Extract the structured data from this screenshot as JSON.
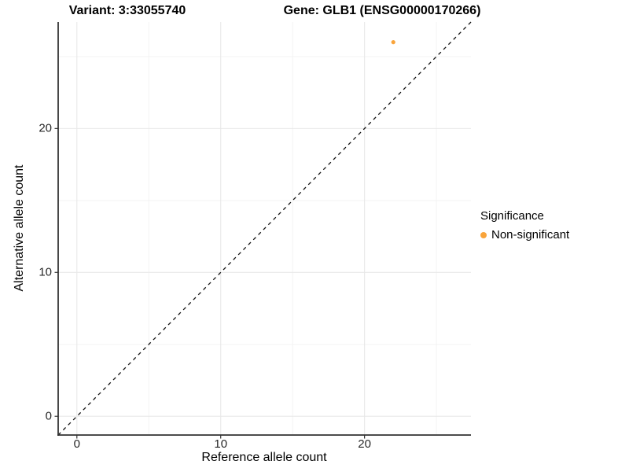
{
  "titles": {
    "variant": "Variant: 3:33055740",
    "gene": "Gene: GLB1 (ENSG00000170266)"
  },
  "axes": {
    "x_label": "Reference allele count",
    "y_label": "Alternative allele count"
  },
  "legend": {
    "title": "Significance",
    "items": [
      {
        "label": "Non-significant",
        "color": "#F9A43B"
      }
    ]
  },
  "chart_data": {
    "type": "scatter",
    "title": "Variant: 3:33055740    Gene: GLB1 (ENSG00000170266)",
    "xlabel": "Reference allele count",
    "ylabel": "Alternative allele count",
    "xlim": [
      -1.3,
      27.4
    ],
    "ylim": [
      -1.3,
      27.4
    ],
    "x_major_ticks": [
      0,
      10,
      20
    ],
    "y_major_ticks": [
      0,
      10,
      20
    ],
    "x_minor_ticks": [
      5,
      15,
      25
    ],
    "y_minor_ticks": [
      5,
      15,
      25
    ],
    "grid": true,
    "legend_position": "right",
    "points": [
      {
        "x": 22,
        "y": 26,
        "series": "Non-significant",
        "color": "#F9A43B"
      }
    ],
    "reference_line": {
      "kind": "abline",
      "slope": 1,
      "intercept": 0,
      "style": "dashed",
      "color": "#111111"
    },
    "colors": {
      "major_grid": "#E8E8E8",
      "minor_grid": "#F3F3F3",
      "axis_line": "#333333",
      "tick_mark": "#333333",
      "point": "#F9A43B"
    }
  }
}
